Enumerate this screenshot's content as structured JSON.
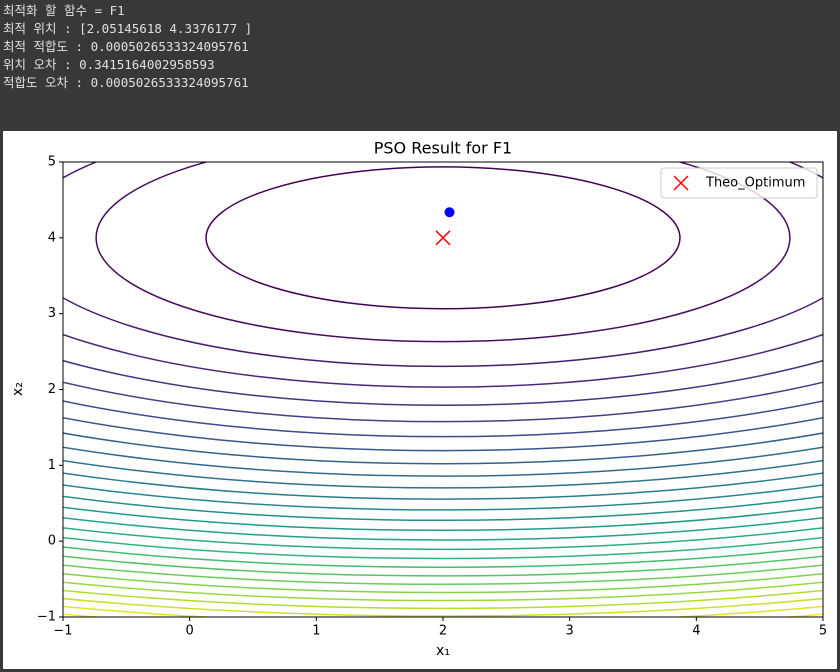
{
  "console": [
    "최적화 할 함수 = F1",
    "최적 위치 : [2.05145618 4.3376177 ]",
    "최적 적합도 : 0.0005026533324095761",
    "위치 오차 : 0.3415164002958593",
    "적합도 오차 : 0.0005026533324095761"
  ],
  "chart_data": {
    "type": "contour",
    "title": "PSO Result for F1",
    "xlabel": "x₁",
    "ylabel": "x₂",
    "xlim": [
      -1,
      5
    ],
    "ylim": [
      -1,
      5
    ],
    "xticks": [
      {
        "value": -1,
        "label": "−1"
      },
      0,
      1,
      2,
      3,
      4,
      5
    ],
    "yticks": [
      {
        "value": -1,
        "label": "−1"
      },
      0,
      1,
      2,
      3,
      4,
      5
    ],
    "contour": {
      "center": [
        2,
        4
      ],
      "y_weight": 4,
      "levels": [
        3.5,
        7.5,
        11.5,
        15.5,
        19.5,
        23.5,
        27.5,
        31.5,
        35.5,
        39.5,
        43.5,
        47.5,
        51.5,
        55.5,
        59.5,
        63.5,
        67.5,
        71.5,
        75.5,
        79.5,
        83.5,
        87.5,
        91.5,
        95.5,
        99.5,
        103.5,
        107.5
      ],
      "colormap": [
        "#440154",
        "#482878",
        "#3e4989",
        "#31688e",
        "#26828e",
        "#1f9e89",
        "#35b779",
        "#6ece58",
        "#b5de2b",
        "#fde725"
      ]
    },
    "series": [
      {
        "name": "Theo_Optimum",
        "color": "#ff0000",
        "marker": "x",
        "x": [
          2
        ],
        "values": [
          4
        ]
      },
      {
        "color": "#0000ff",
        "marker": "o",
        "x": [
          2.05145618
        ],
        "values": [
          4.3376177
        ]
      }
    ],
    "legend": "upper right"
  }
}
